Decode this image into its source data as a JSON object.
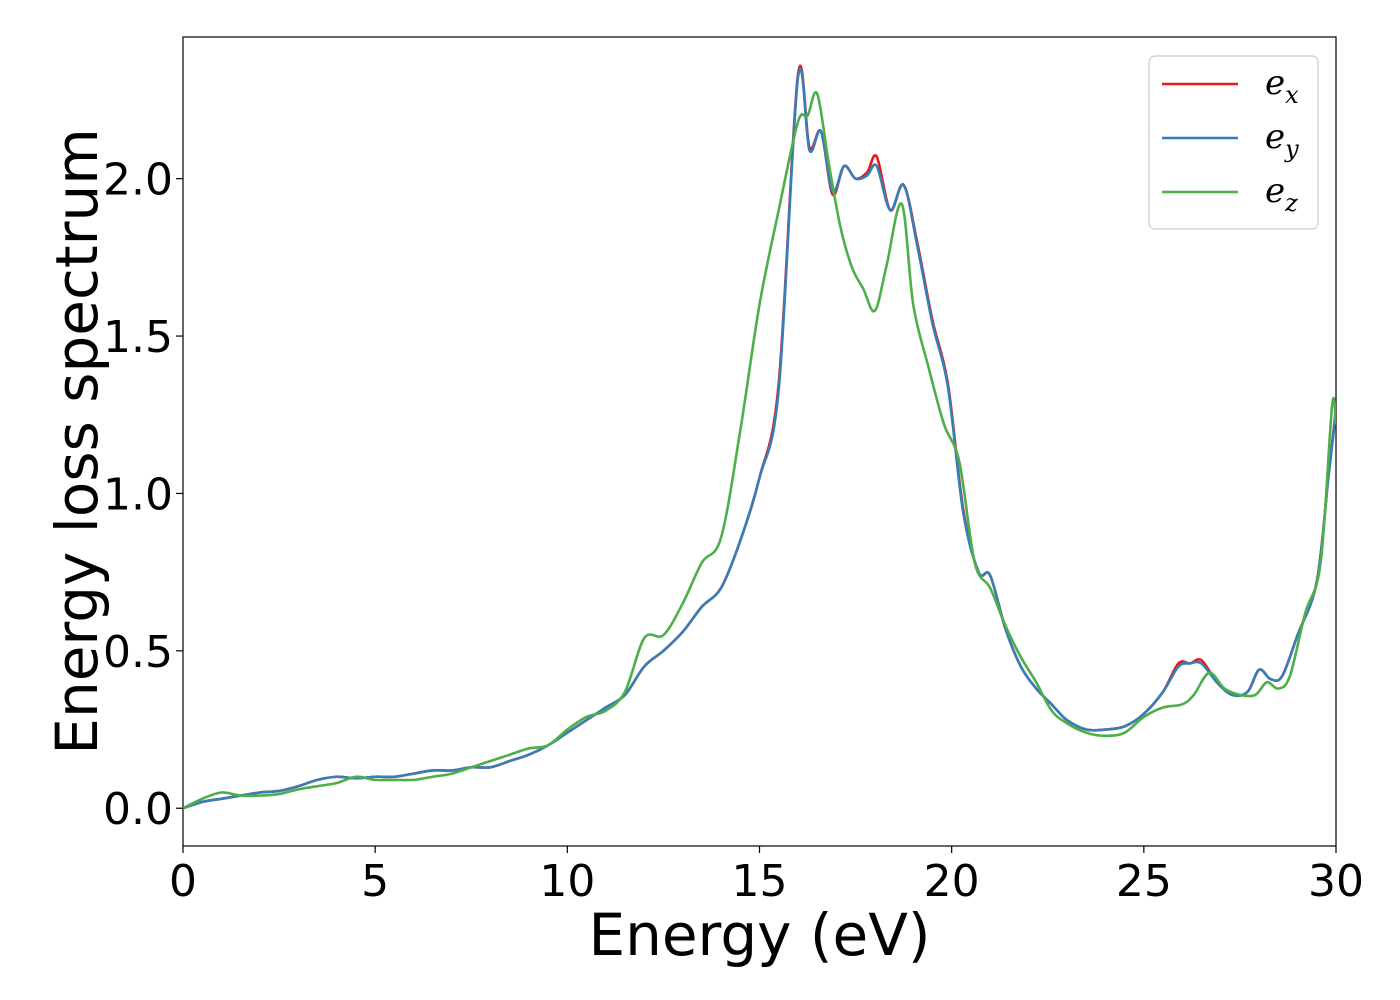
{
  "chart_data": {
    "type": "line",
    "title": "",
    "xlabel": "Energy (eV)",
    "ylabel": "Energy loss spectrum",
    "xlim": [
      0,
      30
    ],
    "ylim": [
      -0.12,
      2.45
    ],
    "xticks": [
      0,
      5,
      10,
      15,
      20,
      25,
      30
    ],
    "xtick_labels": [
      "0",
      "5",
      "10",
      "15",
      "20",
      "25",
      "30"
    ],
    "yticks": [
      0.0,
      0.5,
      1.0,
      1.5,
      2.0
    ],
    "ytick_labels": [
      "0.0",
      "0.5",
      "1.0",
      "1.5",
      "2.0"
    ],
    "grid": false,
    "legend_position": "top-right",
    "series": [
      {
        "name": "e_x",
        "label_base": "e",
        "label_sub": "x",
        "color": "#e41a1c",
        "x": [
          0,
          0.5,
          1,
          1.5,
          2,
          2.5,
          3,
          3.5,
          4,
          4.5,
          5,
          5.5,
          6,
          6.5,
          7,
          7.5,
          8,
          8.5,
          9,
          9.5,
          10,
          10.5,
          11,
          11.5,
          12,
          12.5,
          13,
          13.5,
          14,
          14.5,
          15,
          15.5,
          16,
          16.3,
          16.6,
          16.9,
          17.2,
          17.5,
          17.8,
          18.05,
          18.4,
          18.75,
          19.1,
          19.5,
          19.9,
          20.3,
          20.7,
          21.0,
          21.4,
          21.8,
          22.2,
          22.6,
          23.0,
          23.5,
          24.0,
          24.5,
          25.0,
          25.5,
          25.9,
          26.2,
          26.5,
          26.9,
          27.3,
          27.7,
          28.0,
          28.3,
          28.6,
          29.0,
          29.5,
          29.8,
          30
        ],
        "y": [
          0.0,
          0.02,
          0.03,
          0.04,
          0.05,
          0.055,
          0.07,
          0.09,
          0.1,
          0.095,
          0.1,
          0.1,
          0.11,
          0.12,
          0.12,
          0.13,
          0.13,
          0.15,
          0.17,
          0.2,
          0.24,
          0.28,
          0.32,
          0.36,
          0.45,
          0.5,
          0.56,
          0.64,
          0.7,
          0.85,
          1.05,
          1.35,
          2.33,
          2.1,
          2.15,
          1.95,
          2.04,
          2.0,
          2.02,
          2.07,
          1.9,
          1.98,
          1.8,
          1.55,
          1.35,
          0.95,
          0.75,
          0.74,
          0.57,
          0.45,
          0.38,
          0.33,
          0.28,
          0.25,
          0.25,
          0.26,
          0.3,
          0.37,
          0.46,
          0.46,
          0.47,
          0.4,
          0.36,
          0.37,
          0.44,
          0.41,
          0.42,
          0.55,
          0.72,
          1.05,
          1.27
        ]
      },
      {
        "name": "e_y",
        "label_base": "e",
        "label_sub": "y",
        "color": "#377eb8",
        "x": [
          0,
          0.5,
          1,
          1.5,
          2,
          2.5,
          3,
          3.5,
          4,
          4.5,
          5,
          5.5,
          6,
          6.5,
          7,
          7.5,
          8,
          8.5,
          9,
          9.5,
          10,
          10.5,
          11,
          11.5,
          12,
          12.5,
          13,
          13.5,
          14,
          14.5,
          15,
          15.5,
          16,
          16.3,
          16.6,
          16.9,
          17.2,
          17.5,
          17.8,
          18.05,
          18.4,
          18.75,
          19.1,
          19.5,
          19.9,
          20.3,
          20.7,
          21.0,
          21.4,
          21.8,
          22.2,
          22.6,
          23.0,
          23.5,
          24.0,
          24.5,
          25.0,
          25.5,
          25.9,
          26.2,
          26.5,
          26.9,
          27.3,
          27.7,
          28.0,
          28.3,
          28.6,
          29.0,
          29.5,
          29.8,
          30
        ],
        "y": [
          0.0,
          0.02,
          0.03,
          0.04,
          0.05,
          0.055,
          0.07,
          0.09,
          0.1,
          0.095,
          0.1,
          0.1,
          0.11,
          0.12,
          0.12,
          0.13,
          0.13,
          0.15,
          0.17,
          0.2,
          0.24,
          0.28,
          0.32,
          0.36,
          0.45,
          0.5,
          0.56,
          0.64,
          0.7,
          0.85,
          1.05,
          1.33,
          2.32,
          2.09,
          2.15,
          1.96,
          2.04,
          2.0,
          2.01,
          2.04,
          1.9,
          1.98,
          1.79,
          1.54,
          1.34,
          0.94,
          0.75,
          0.74,
          0.57,
          0.45,
          0.38,
          0.33,
          0.28,
          0.25,
          0.25,
          0.26,
          0.3,
          0.37,
          0.45,
          0.46,
          0.46,
          0.4,
          0.36,
          0.37,
          0.44,
          0.41,
          0.42,
          0.55,
          0.72,
          1.05,
          1.26
        ]
      },
      {
        "name": "e_z",
        "label_base": "e",
        "label_sub": "z",
        "color": "#4daf4a",
        "x": [
          0,
          0.5,
          1,
          1.5,
          2,
          2.5,
          3,
          3.5,
          4,
          4.5,
          5,
          5.5,
          6,
          6.5,
          7,
          7.5,
          8,
          8.5,
          9,
          9.5,
          10,
          10.5,
          11,
          11.5,
          12,
          12.5,
          13,
          13.5,
          14,
          14.5,
          15,
          15.5,
          16,
          16.25,
          16.5,
          16.8,
          17.1,
          17.4,
          17.7,
          18.0,
          18.3,
          18.7,
          19.0,
          19.4,
          19.8,
          20.2,
          20.6,
          21.0,
          21.4,
          21.8,
          22.2,
          22.6,
          23.0,
          23.5,
          24.0,
          24.5,
          25.0,
          25.5,
          26.0,
          26.3,
          26.7,
          27.1,
          27.5,
          27.9,
          28.2,
          28.5,
          28.8,
          29.2,
          29.6,
          29.9,
          30
        ],
        "y": [
          0.0,
          0.03,
          0.05,
          0.04,
          0.04,
          0.045,
          0.06,
          0.07,
          0.08,
          0.1,
          0.09,
          0.09,
          0.09,
          0.1,
          0.11,
          0.13,
          0.15,
          0.17,
          0.19,
          0.2,
          0.25,
          0.29,
          0.31,
          0.37,
          0.54,
          0.55,
          0.65,
          0.78,
          0.86,
          1.2,
          1.6,
          1.9,
          2.18,
          2.2,
          2.27,
          2.05,
          1.85,
          1.72,
          1.65,
          1.58,
          1.72,
          1.92,
          1.6,
          1.4,
          1.22,
          1.1,
          0.78,
          0.7,
          0.58,
          0.48,
          0.4,
          0.31,
          0.27,
          0.24,
          0.23,
          0.24,
          0.29,
          0.32,
          0.33,
          0.36,
          0.43,
          0.38,
          0.36,
          0.36,
          0.4,
          0.38,
          0.42,
          0.62,
          0.78,
          1.28,
          1.22
        ]
      }
    ]
  }
}
